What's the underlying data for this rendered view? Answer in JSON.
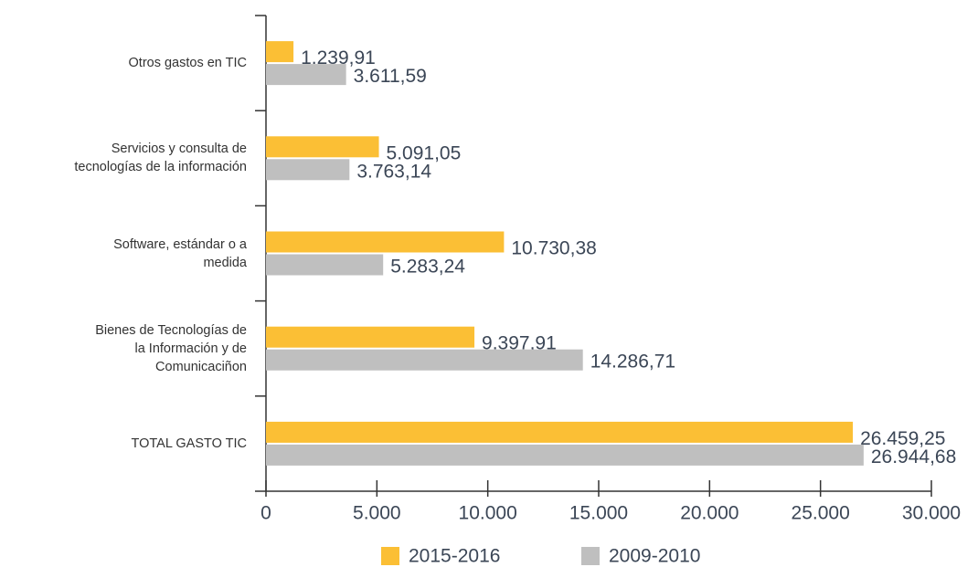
{
  "chart_data": {
    "type": "bar",
    "orientation": "horizontal",
    "categories": [
      "Otros gastos en TIC",
      "Servicios y consulta de tecnologías de la información",
      "Software, estándar o a medida",
      "Bienes de Tecnologías de la Información y de Comunicaciñon",
      "TOTAL GASTO TIC"
    ],
    "series": [
      {
        "name": "2015-2016",
        "color": "#fbbf35",
        "values": [
          1239.91,
          5091.05,
          10730.38,
          9397.91,
          26459.25
        ],
        "value_labels": [
          "1.239,91",
          "5.091,05",
          "10.730,38",
          "9.397,91",
          "26.459,25"
        ]
      },
      {
        "name": "2009-2010",
        "color": "#bfbfbf",
        "values": [
          3611.59,
          3763.14,
          5283.24,
          14286.71,
          26944.68
        ],
        "value_labels": [
          "3.611,59",
          "3.763,14",
          "5.283,24",
          "14.286,71",
          "26.944,68"
        ]
      }
    ],
    "xlim": [
      0,
      30000
    ],
    "xticks": [
      0,
      {
        "value": 5000,
        "label": "5.000"
      },
      {
        "value": 10000,
        "label": "10.000"
      },
      {
        "value": 15000,
        "label": "15.000"
      },
      {
        "value": 20000,
        "label": "20.000"
      },
      {
        "value": 25000,
        "label": "25.000"
      },
      {
        "value": 30000,
        "label": "30.000"
      }
    ],
    "legend": "bottom",
    "grid": false
  }
}
